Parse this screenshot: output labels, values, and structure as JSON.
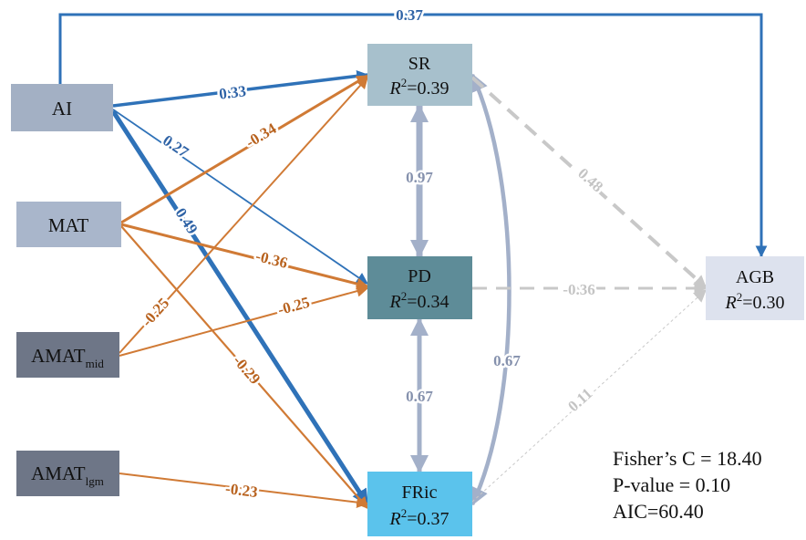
{
  "nodes": {
    "ai": {
      "label": "AI",
      "fill": "#a3b0c4"
    },
    "mat": {
      "label": "MAT",
      "fill": "#a9b6cb"
    },
    "amat_mid": {
      "label": "AMAT",
      "sub": "mid",
      "fill": "#6e7687"
    },
    "amat_lgm": {
      "label": "AMAT",
      "sub": "lgm",
      "fill": "#6e7687"
    },
    "sr": {
      "label": "SR",
      "r2_prefix": "R",
      "r2_sup": "2",
      "r2_value": "=0.39",
      "fill": "#a7c0cc"
    },
    "pd": {
      "label": "PD",
      "r2_prefix": "R",
      "r2_sup": "2",
      "r2_value": "=0.34",
      "fill": "#5e8c98"
    },
    "fric": {
      "label": "FRic",
      "r2_prefix": "R",
      "r2_sup": "2",
      "r2_value": "=0.37",
      "fill": "#5bc3ec"
    },
    "agb": {
      "label": "AGB",
      "r2_prefix": "R",
      "r2_sup": "2",
      "r2_value": "=0.30",
      "fill": "#dde2ee"
    }
  },
  "paths": {
    "ai_agb": {
      "coef": "0.37"
    },
    "ai_sr": {
      "coef": "0.33"
    },
    "ai_pd": {
      "coef": "0.27"
    },
    "ai_fric": {
      "coef": "0.49"
    },
    "mat_sr": {
      "coef": "-0.34"
    },
    "mat_pd": {
      "coef": "-0.36"
    },
    "mat_fric": {
      "coef": "-0.29"
    },
    "amatmid_sr": {
      "coef": "-0.25"
    },
    "amatmid_pd": {
      "coef": "-0.25"
    },
    "amatlgm_fric": {
      "coef": "-0.23"
    },
    "sr_pd": {
      "coef": "0.97"
    },
    "pd_fric": {
      "coef": "0.67"
    },
    "sr_fric": {
      "coef": "0.67"
    },
    "sr_agb": {
      "coef": "0.48"
    },
    "pd_agb": {
      "coef": "-0.36"
    },
    "fric_agb": {
      "coef": "0.11"
    }
  },
  "stats": {
    "fisher_c": "Fisher’s C = 18.40",
    "p_value": "P-value = 0.10",
    "aic": "AIC=60.40"
  },
  "colors": {
    "positive": "#2f72b8",
    "negative": "#d07a35",
    "inter_response": "#a3b0c9",
    "nonsig": "#c8c8c8",
    "label_blue": "#2f63a6",
    "label_orange": "#b8621e",
    "label_grey": "#8591ad",
    "label_light": "#c4c4c4"
  }
}
